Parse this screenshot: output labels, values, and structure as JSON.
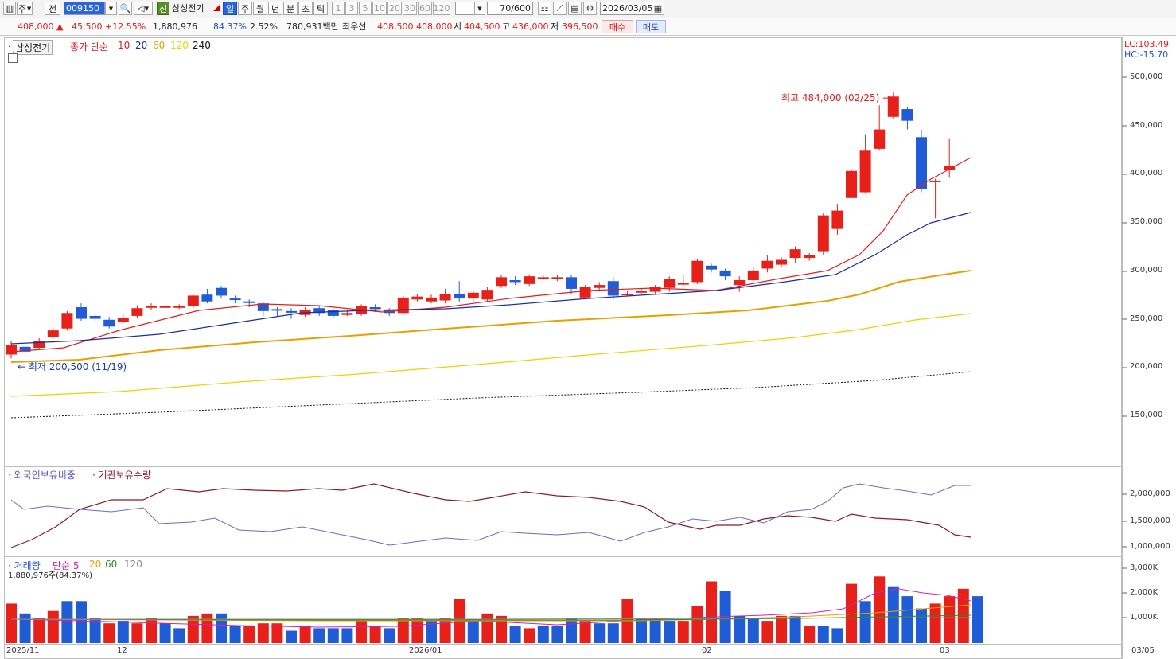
{
  "toolbar": {
    "period_label": "주",
    "view_label": "전",
    "code": "009150",
    "stock_name": "삼성전기",
    "sin_label": "신",
    "periods": [
      "일",
      "주",
      "월",
      "년",
      "분",
      "초",
      "틱"
    ],
    "numbers": [
      "1",
      "3",
      "5",
      "10",
      "20",
      "30",
      "60",
      "120"
    ],
    "count": "70",
    "count_total": "/600",
    "date": "2026/03/05"
  },
  "quote": {
    "price": "408,000",
    "change": "45,500",
    "change_pct": "+12.55%",
    "volume": "1,880,976",
    "vol_ratio": "84.37%",
    "turnover_pct": "2.52%",
    "amount": "780,931백만",
    "best_label": "최우선",
    "best_ask": "408,500",
    "best_bid": "408,000",
    "open_label": "시",
    "open": "404,500",
    "high_label": "고",
    "high": "436,000",
    "low_label": "저",
    "low": "396,500",
    "buy_label": "매수",
    "sell_label": "매도"
  },
  "price_pane": {
    "legend_name": "삼성전기",
    "legend_ma_label": "종가 단순",
    "ma_labels": [
      "10",
      "20",
      "60",
      "120",
      "240"
    ],
    "lc": "LC:103.49",
    "hc": "HC:-15.70",
    "high_note": "최고 484,000 (02/25)",
    "low_note": "최저 200,500 (11/19)",
    "y_ticks": [
      "500,000",
      "450,000",
      "400,000",
      "350,000",
      "300,000",
      "250,000",
      "200,000",
      "150,000"
    ]
  },
  "holding_pane": {
    "legend_foreign": "외국인보유비중",
    "legend_inst": "기관보유수량",
    "y_ticks": [
      "2,000,000",
      "1,500,000",
      "1,000,000"
    ]
  },
  "volume_pane": {
    "legend_name": "거래량",
    "legend_ma_label": "단순 5",
    "ma_labels": [
      "20",
      "60",
      "120"
    ],
    "current": "1,880,976주(84.37%)",
    "y_ticks": [
      "3,000K",
      "2,000K",
      "1,000K"
    ]
  },
  "x_ticks": [
    "2025/11",
    "12",
    "2026/01",
    "02",
    "03",
    "03/05"
  ],
  "colors": {
    "up": "#e8201a",
    "down": "#1f5cd6",
    "ma10": "#e02020",
    "ma20": "#1a2ea0",
    "ma60": "#e6a100",
    "ma120": "#f0d000",
    "ma240": "#111111"
  }
}
